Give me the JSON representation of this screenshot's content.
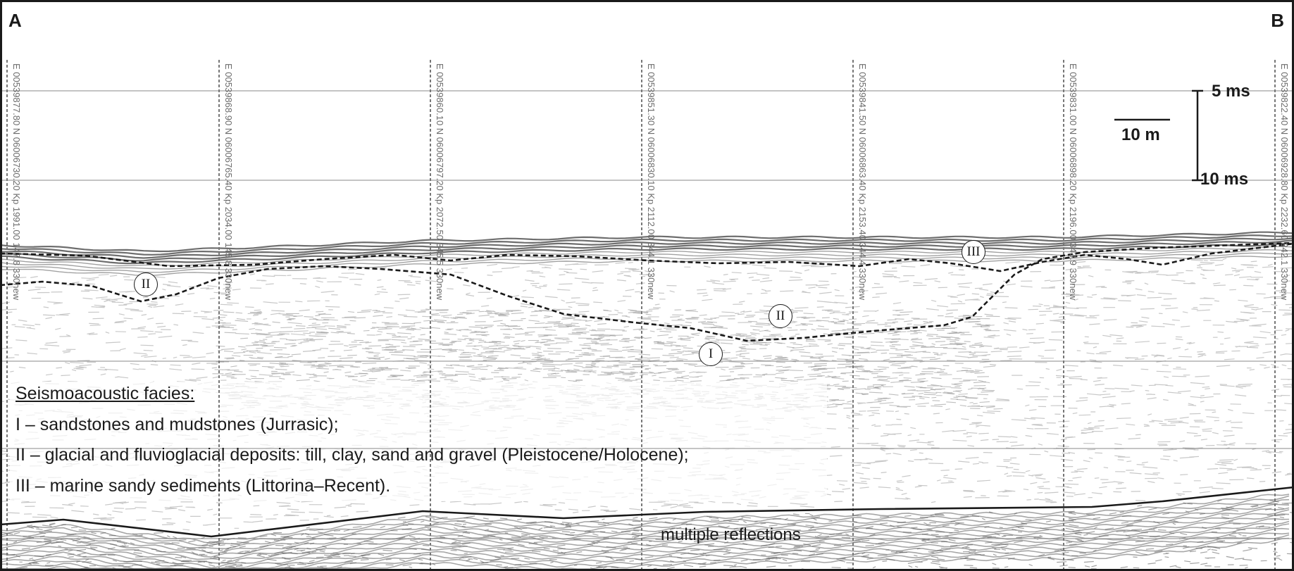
{
  "profile": {
    "start_label": "A",
    "end_label": "B"
  },
  "fixes": [
    "E 00539877.80 N 06006730.20 Kp 1991.00 147.8 330new",
    "E 00539868.90 N 06006765.40 Kp 2034.00 145.8 330new",
    "E 00539860.10 N 06006797.20 Kp 2072.50 345.5 330new",
    "E 00539851.30 N 06006830.10 Kp 2112.00 344.1 330new",
    "E 00539841.50 N 06006863.40 Kp 2153.40 344.4 330new",
    "E 00539831.00 N 06006898.20 Kp 2196.00 343.9 330new",
    "E 00539822.40 N 06006928.80 Kp 2232.60 342.1 330new"
  ],
  "time_scale": {
    "top_label": "5 ms",
    "bottom_label": "10 ms"
  },
  "distance_scale": {
    "label": "10 m"
  },
  "facies_markers": [
    {
      "id": "II",
      "x": 207,
      "y": 404
    },
    {
      "id": "III",
      "x": 1382,
      "y": 358
    },
    {
      "id": "II",
      "x": 1108,
      "y": 449
    },
    {
      "id": "I",
      "x": 1009,
      "y": 503
    }
  ],
  "legend": {
    "title": "Seismoacoustic facies:",
    "items": [
      "I – sandstones and mudstones (Jurrasic);",
      "II – glacial and fluvioglacial deposits: till, clay, sand and gravel (Pleistocene/Holocene);",
      "III – marine sandy sediments (Littorina–Recent)."
    ]
  },
  "multiples_label": "multiple reflections",
  "colors": {
    "frame": "#1a1a1a",
    "reflector": "#555555",
    "noise": "#9a9a9a",
    "grid": "#888888"
  }
}
